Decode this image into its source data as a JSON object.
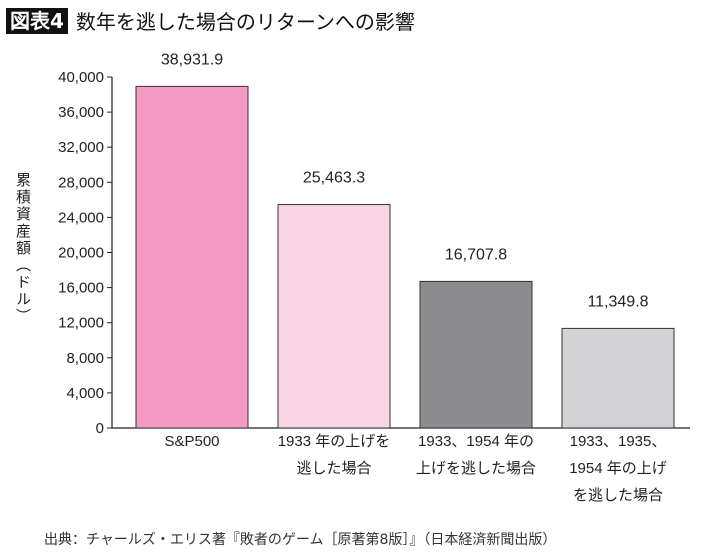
{
  "title": {
    "badge": "図表4",
    "text": "数年を逃した場合のリターンへの影響"
  },
  "source": "出典：チャールズ・エリス著『敗者のゲーム［原著第8版］』（日本経済新聞出版）",
  "chart_data": {
    "type": "bar",
    "ylabel": "累積資産額（ドル）",
    "ylim": [
      0,
      40000
    ],
    "yticks": [
      0,
      4000,
      8000,
      12000,
      16000,
      20000,
      24000,
      28000,
      32000,
      36000,
      40000
    ],
    "ytick_labels": [
      "0",
      "4,000",
      "8,000",
      "12,000",
      "16,000",
      "20,000",
      "24,000",
      "28,000",
      "32,000",
      "36,000",
      "40,000"
    ],
    "categories": [
      [
        "S&P500"
      ],
      [
        "1933 年の上げを",
        "逃した場合"
      ],
      [
        "1933、1954 年の",
        "上げを逃した場合"
      ],
      [
        "1933、1935、",
        "1954 年の上げ",
        "を逃した場合"
      ]
    ],
    "values": [
      38931.9,
      25463.3,
      16707.8,
      11349.8
    ],
    "data_labels": [
      "38,931.9",
      "25,463.3",
      "16,707.8",
      "11,349.8"
    ],
    "colors": [
      "#f39bc4",
      "#f9d4e5",
      "#8d8d90",
      "#d3d3d5"
    ],
    "grid": false,
    "legend": "none"
  }
}
